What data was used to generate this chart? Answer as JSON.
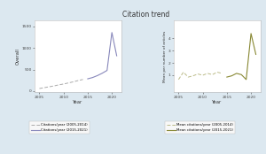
{
  "title": "Citation trend",
  "background_color": "#dce8f0",
  "left_ylabel": "Overall",
  "right_ylabel": "Mean per number of articles",
  "xlabel": "Year",
  "legend_label_dash_left": "Citations/year (2005-2014)",
  "legend_label_solid_left": "Citations/year (2015-2021)",
  "legend_label_dash_right": "Mean citations/year (2005-2014)",
  "legend_label_solid_right": "Mean citations/year (2015-2021)",
  "years_2005_2014": [
    2005,
    2006,
    2007,
    2008,
    2009,
    2010,
    2011,
    2012,
    2013,
    2014
  ],
  "years_2015_2021": [
    2015,
    2016,
    2017,
    2018,
    2019,
    2020,
    2021
  ],
  "left_overall_2005_2014": [
    60,
    80,
    100,
    120,
    145,
    165,
    190,
    215,
    245,
    270
  ],
  "left_overall_2015_2021": [
    285,
    315,
    360,
    415,
    480,
    1360,
    820
  ],
  "right_mean_2005_2014": [
    0.65,
    1.25,
    0.85,
    0.95,
    1.1,
    1.0,
    1.15,
    1.05,
    1.25,
    1.15
  ],
  "right_mean_2015_2021": [
    0.85,
    0.95,
    1.15,
    1.05,
    0.65,
    4.4,
    2.7
  ],
  "color_dash_left": "#aaaaaa",
  "color_solid_left": "#8888bb",
  "color_dash_right": "#bbbb88",
  "color_solid_right": "#888833",
  "left_ylim": [
    -30,
    1650
  ],
  "left_yticks": [
    0,
    500,
    1000,
    1500
  ],
  "right_ylim": [
    -0.4,
    5.5
  ],
  "right_yticks": [
    1,
    2,
    3,
    4
  ],
  "xticks": [
    2005,
    2010,
    2015,
    2020
  ],
  "panel_bg": "#ffffff"
}
